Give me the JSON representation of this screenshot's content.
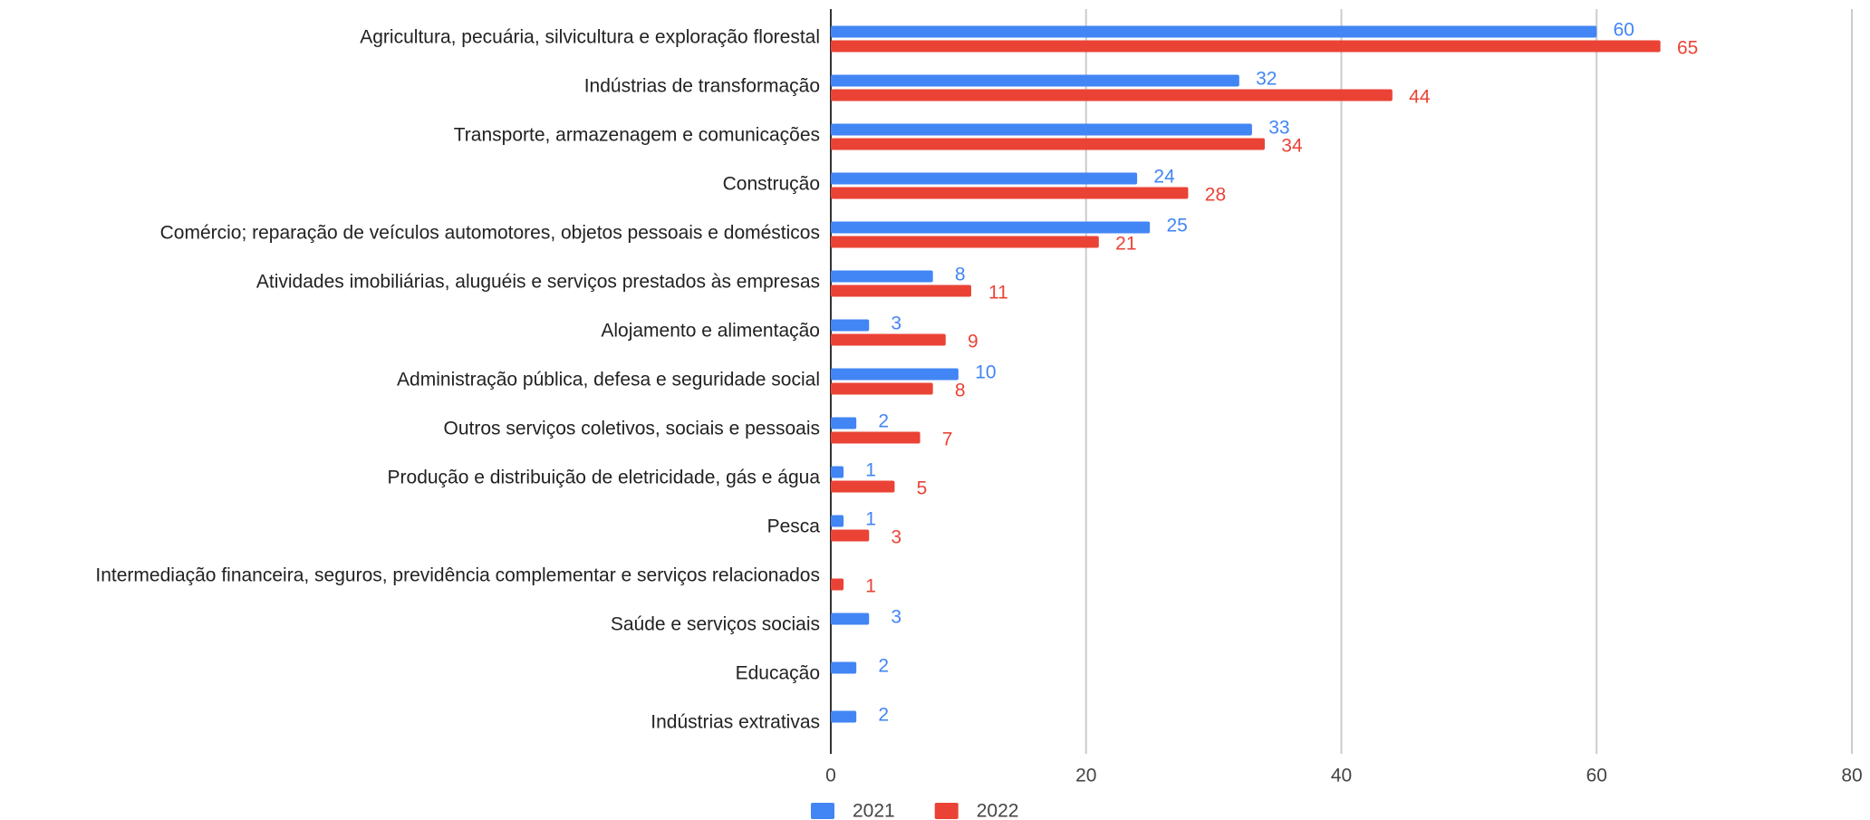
{
  "chart_data": {
    "type": "bar",
    "orientation": "horizontal",
    "categories": [
      "Agricultura, pecuária, silvicultura e exploração florestal",
      "Indústrias de transformação",
      "Transporte, armazenagem e comunicações",
      "Construção",
      "Comércio; reparação de veículos automotores, objetos pessoais e domésticos",
      "Atividades imobiliárias, aluguéis e serviços prestados às empresas",
      "Alojamento e alimentação",
      "Administração pública, defesa e seguridade social",
      "Outros serviços coletivos, sociais e pessoais",
      "Produção e distribuição de eletricidade, gás e água",
      "Pesca",
      "Intermediação financeira, seguros, previdência complementar e serviços relacionados",
      "Saúde e serviços sociais",
      "Educação",
      "Indústrias extrativas"
    ],
    "series": [
      {
        "name": "2021",
        "color": "#4285f4",
        "values": [
          60,
          32,
          33,
          24,
          25,
          8,
          3,
          10,
          2,
          1,
          1,
          null,
          3,
          2,
          2
        ]
      },
      {
        "name": "2022",
        "color": "#ea4335",
        "values": [
          65,
          44,
          34,
          28,
          21,
          11,
          9,
          8,
          7,
          5,
          3,
          1,
          null,
          null,
          null
        ]
      }
    ],
    "xlim": [
      0,
      80
    ],
    "xticks": [
      0,
      20,
      40,
      60,
      80
    ],
    "grid": true,
    "legend": "bottom"
  }
}
